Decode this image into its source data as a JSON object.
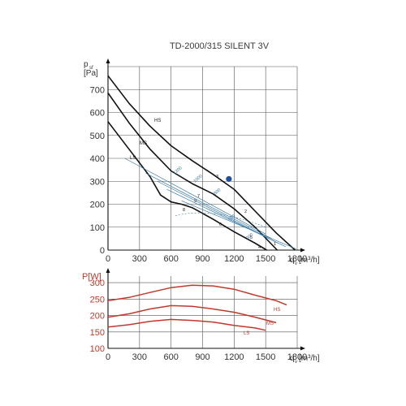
{
  "chart_data": [
    {
      "type": "line",
      "title": "TD-2000/315 SILENT 3V",
      "xlabel": "q",
      "xlabel_sub": "v",
      "xunit": "[m³/h]",
      "ylabel": "p",
      "ylabel_sub": "sf",
      "yunit": "[Pa]",
      "xlim": [
        0,
        1800
      ],
      "ylim": [
        0,
        800
      ],
      "xticks": [
        0,
        300,
        600,
        900,
        1200,
        1500,
        1800
      ],
      "yticks": [
        0,
        100,
        200,
        300,
        400,
        500,
        600,
        700
      ],
      "grid": true,
      "series": [
        {
          "name": "HS",
          "x": [
            0,
            200,
            400,
            600,
            800,
            1000,
            1200,
            1400,
            1600,
            1780
          ],
          "y": [
            760,
            640,
            540,
            455,
            390,
            330,
            265,
            170,
            75,
            0
          ]
        },
        {
          "name": "MS",
          "x": [
            0,
            200,
            400,
            600,
            800,
            1000,
            1200,
            1400,
            1610
          ],
          "y": [
            685,
            555,
            440,
            345,
            290,
            245,
            180,
            100,
            0
          ]
        },
        {
          "name": "LS",
          "x": [
            0,
            200,
            400,
            500,
            600,
            700,
            800,
            1000,
            1200,
            1400,
            1510
          ],
          "y": [
            560,
            440,
            320,
            240,
            210,
            200,
            185,
            135,
            80,
            30,
            0
          ]
        }
      ],
      "annotations": {
        "duty_point_numbers": [
          "1",
          "2",
          "3",
          "4",
          "5",
          "6",
          "7",
          "8",
          "9"
        ],
        "rpm_labels": [
          "1200",
          "1000",
          "800",
          "600",
          "300"
        ],
        "operating_point": {
          "x": 1150,
          "y": 310,
          "color": "#1f4fa0"
        }
      }
    },
    {
      "type": "line",
      "ylabel": "P[W]",
      "xlabel": "q",
      "xlabel_sub": "v",
      "xunit": "[m³/h]",
      "xlim": [
        0,
        1800
      ],
      "ylim": [
        100,
        320
      ],
      "xticks": [
        0,
        300,
        600,
        900,
        1200,
        1500,
        1800
      ],
      "yticks": [
        100,
        150,
        200,
        250,
        300
      ],
      "grid": true,
      "series": [
        {
          "name": "HS",
          "x": [
            0,
            200,
            400,
            600,
            800,
            1000,
            1200,
            1400,
            1600,
            1700
          ],
          "y": [
            245,
            255,
            270,
            285,
            292,
            290,
            280,
            262,
            245,
            232
          ]
        },
        {
          "name": "MS",
          "x": [
            0,
            200,
            400,
            600,
            800,
            1000,
            1200,
            1400,
            1600
          ],
          "y": [
            195,
            205,
            220,
            230,
            228,
            220,
            210,
            195,
            178
          ]
        },
        {
          "name": "LS",
          "x": [
            0,
            200,
            400,
            600,
            800,
            1000,
            1200,
            1400,
            1500
          ],
          "y": [
            165,
            172,
            182,
            188,
            185,
            180,
            170,
            162,
            155
          ]
        }
      ]
    }
  ],
  "colors": {
    "axis": "#111111",
    "grid": "#555555",
    "curve_pressure": "#111111",
    "curve_power": "#c0392b",
    "blue_lines": "#3a7aa6"
  }
}
